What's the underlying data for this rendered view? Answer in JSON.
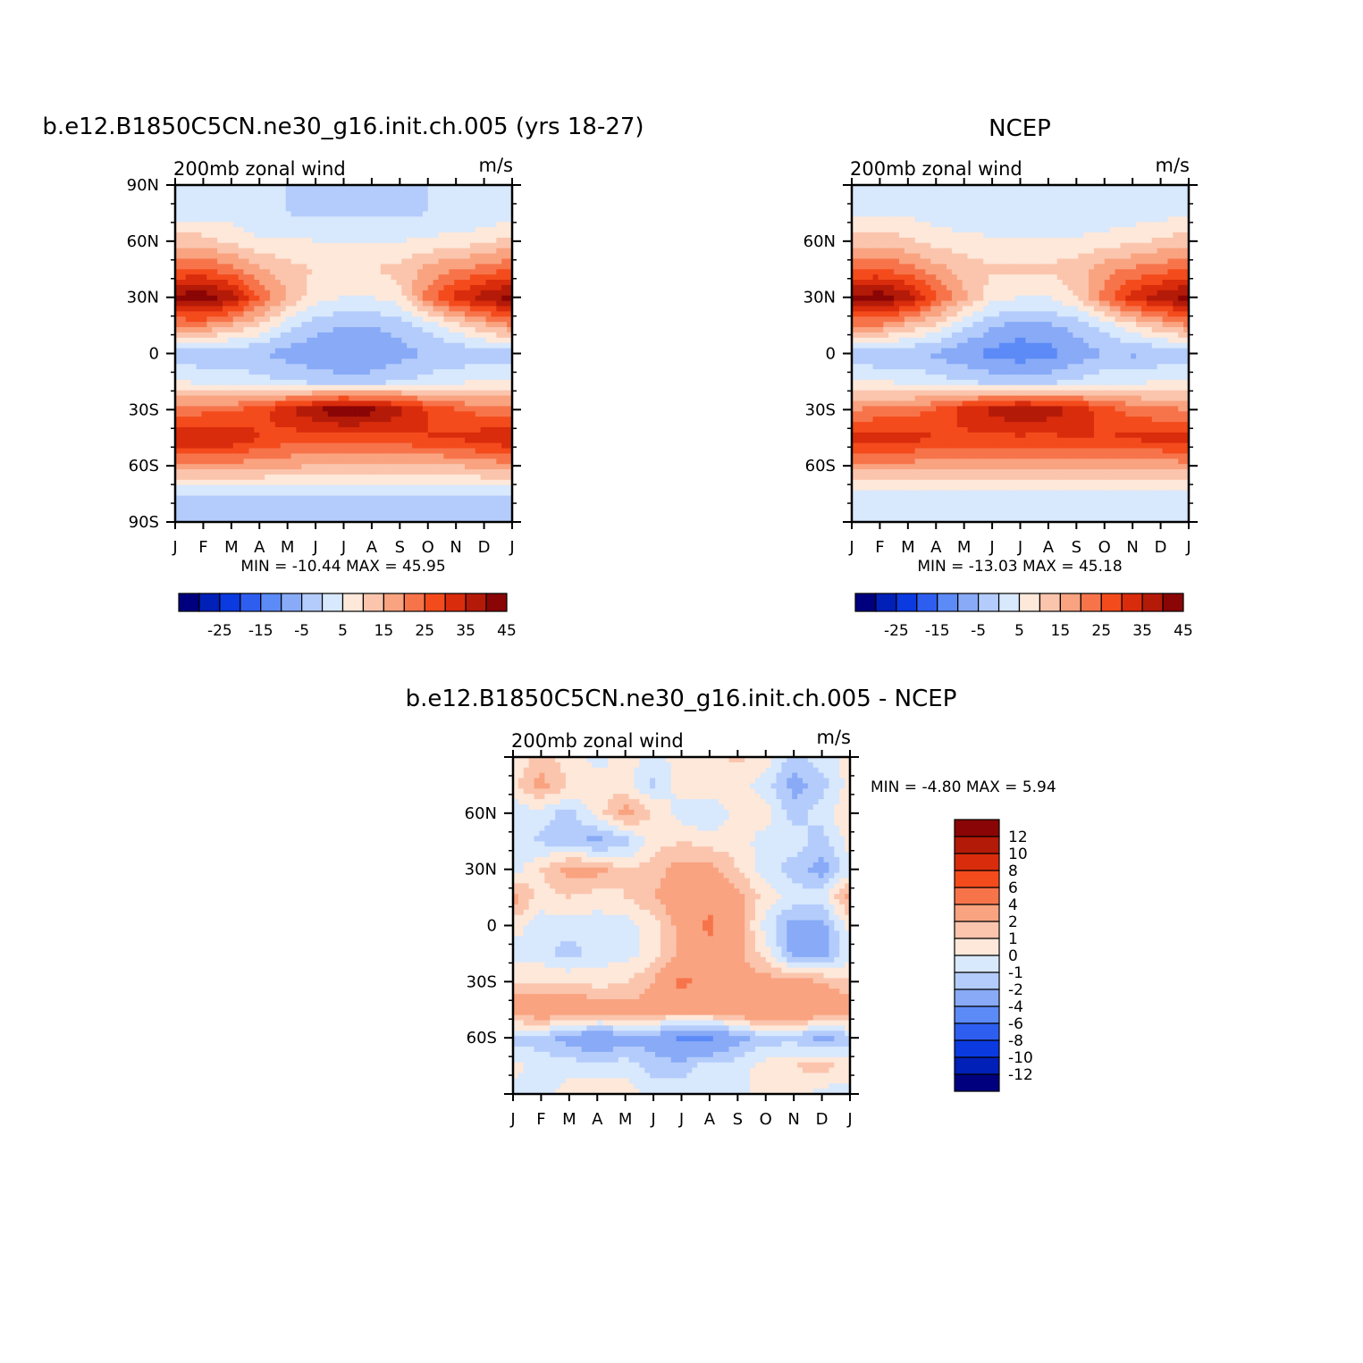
{
  "colors": {
    "main_levels": [
      "#00007f",
      "#0020b8",
      "#0a3ae0",
      "#2e5ef0",
      "#5c8af7",
      "#88aaf7",
      "#b4ccfb",
      "#d8e8fd",
      "#fde8da",
      "#fbc5ad",
      "#f9a380",
      "#f7744b",
      "#f44b1c",
      "#d92c0c",
      "#b41a08",
      "#8a0505"
    ],
    "diff_levels": [
      "#00007f",
      "#0020b8",
      "#0a3ae0",
      "#2e5ef0",
      "#5c8af7",
      "#88aaf7",
      "#b4ccfb",
      "#d8e8fd",
      "#fde8da",
      "#fbc5ad",
      "#f9a380",
      "#f7744b",
      "#f44b1c",
      "#d92c0c",
      "#b41a08",
      "#8a0505"
    ]
  },
  "panels": [
    {
      "id": "model",
      "title": "b.e12.B1850C5CN.ne30_g16.init.ch.005 (yrs 18-27)",
      "left_label": "200mb zonal wind",
      "right_label": "m/s",
      "min_max": "MIN = -10.44 MAX =  45.95"
    },
    {
      "id": "obs",
      "title": "NCEP",
      "left_label": "200mb zonal wind",
      "right_label": "m/s",
      "min_max": "MIN = -13.03 MAX =  45.18"
    },
    {
      "id": "diff",
      "title": "b.e12.B1850C5CN.ne30_g16.init.ch.005 - NCEP",
      "left_label": "200mb zonal wind",
      "right_label": "m/s",
      "min_max": "MIN =   -4.80 MAX =    5.94"
    }
  ],
  "main_colorbar_labels": [
    "-25",
    "-15",
    "-5",
    "5",
    "15",
    "25",
    "35",
    "45"
  ],
  "diff_colorbar_labels": [
    "12",
    "10",
    "8",
    "6",
    "4",
    "2",
    "1",
    "0",
    "-1",
    "-2",
    "-4",
    "-6",
    "-8",
    "-10",
    "-12"
  ],
  "chart_data": [
    {
      "type": "heatmap",
      "title": "b.e12.B1850C5CN.ne30_g16.init.ch.005 (yrs 18-27)",
      "subtitle": "200mb zonal wind",
      "units": "m/s",
      "x": [
        "J",
        "F",
        "M",
        "A",
        "M",
        "J",
        "J",
        "A",
        "S",
        "O",
        "N",
        "D",
        "J"
      ],
      "y_ticks": [
        "90N",
        "60N",
        "30N",
        "0",
        "30S",
        "60S",
        "90S"
      ],
      "ylim": [
        -90,
        90
      ],
      "lat": [
        90,
        75,
        60,
        45,
        30,
        15,
        0,
        -15,
        -30,
        -45,
        -60,
        -75,
        -90
      ],
      "values": [
        [
          0,
          0,
          0,
          0,
          0,
          0,
          0,
          0,
          0,
          0,
          0,
          0,
          0
        ],
        [
          3,
          3,
          3,
          0,
          0,
          -1,
          -1,
          -1,
          -1,
          0,
          0,
          0,
          3
        ],
        [
          12,
          12,
          9,
          6,
          6,
          5,
          5,
          5,
          5,
          6,
          7,
          9,
          12
        ],
        [
          25,
          25,
          22,
          16,
          12,
          10,
          10,
          10,
          12,
          17,
          20,
          22,
          25
        ],
        [
          42,
          44,
          38,
          25,
          15,
          7,
          5,
          5,
          8,
          22,
          32,
          38,
          42
        ],
        [
          20,
          20,
          15,
          10,
          2,
          -3,
          -5,
          -5,
          -3,
          2,
          8,
          14,
          20
        ],
        [
          -3,
          -4,
          -4,
          -5,
          -7,
          -9,
          -10,
          -9,
          -7,
          -5,
          -4,
          -3,
          -3
        ],
        [
          5,
          4,
          3,
          2,
          0,
          -2,
          -3,
          -3,
          0,
          2,
          4,
          5,
          5
        ],
        [
          22,
          23,
          24,
          28,
          34,
          40,
          45,
          42,
          37,
          30,
          25,
          23,
          22
        ],
        [
          36,
          36,
          35,
          30,
          28,
          27,
          27,
          28,
          29,
          30,
          31,
          33,
          36
        ],
        [
          18,
          18,
          18,
          17,
          16,
          15,
          14,
          13,
          13,
          14,
          15,
          17,
          18
        ],
        [
          0,
          0,
          0,
          0,
          0,
          0,
          0,
          0,
          0,
          0,
          0,
          0,
          0
        ],
        [
          -2,
          -2,
          -2,
          -2,
          -2,
          -2,
          -2,
          -2,
          -2,
          -2,
          -2,
          -2,
          -2
        ]
      ]
    },
    {
      "type": "heatmap",
      "title": "NCEP",
      "subtitle": "200mb zonal wind",
      "units": "m/s",
      "x": [
        "J",
        "F",
        "M",
        "A",
        "M",
        "J",
        "J",
        "A",
        "S",
        "O",
        "N",
        "D",
        "J"
      ],
      "y_ticks": [
        "60N",
        "30N",
        "0",
        "30S",
        "60S"
      ],
      "ylim": [
        -90,
        90
      ],
      "lat": [
        90,
        75,
        60,
        45,
        30,
        15,
        0,
        -15,
        -30,
        -45,
        -60,
        -75,
        -90
      ],
      "values": [
        [
          0,
          0,
          0,
          0,
          0,
          0,
          0,
          0,
          0,
          0,
          0,
          0,
          0
        ],
        [
          4,
          4,
          4,
          2,
          1,
          0,
          0,
          0,
          0,
          1,
          2,
          3,
          4
        ],
        [
          13,
          13,
          11,
          8,
          7,
          6,
          6,
          6,
          6,
          7,
          9,
          11,
          13
        ],
        [
          25,
          25,
          22,
          17,
          13,
          11,
          11,
          11,
          13,
          18,
          21,
          23,
          25
        ],
        [
          42,
          43,
          38,
          26,
          16,
          7,
          5,
          5,
          10,
          22,
          33,
          38,
          42
        ],
        [
          20,
          20,
          14,
          9,
          1,
          -4,
          -7,
          -6,
          -3,
          2,
          9,
          14,
          20
        ],
        [
          -4,
          -5,
          -5,
          -6,
          -9,
          -12,
          -13,
          -12,
          -8,
          -5,
          -6,
          -4,
          -4
        ],
        [
          6,
          5,
          4,
          2,
          0,
          -2,
          -3,
          -2,
          1,
          3,
          4,
          5,
          6
        ],
        [
          20,
          21,
          22,
          26,
          32,
          37,
          40,
          38,
          34,
          28,
          23,
          21,
          20
        ],
        [
          33,
          33,
          32,
          30,
          29,
          29,
          29,
          29,
          30,
          30,
          31,
          32,
          33
        ],
        [
          18,
          18,
          18,
          17,
          17,
          16,
          16,
          16,
          16,
          16,
          16,
          17,
          18
        ],
        [
          4,
          4,
          4,
          3,
          3,
          3,
          3,
          3,
          3,
          3,
          3,
          3,
          4
        ],
        [
          0,
          0,
          0,
          0,
          0,
          0,
          0,
          0,
          0,
          0,
          0,
          0,
          0
        ]
      ]
    },
    {
      "type": "heatmap",
      "title": "b.e12.B1850C5CN.ne30_g16.init.ch.005 - NCEP",
      "subtitle": "200mb zonal wind",
      "units": "m/s",
      "x": [
        "J",
        "F",
        "M",
        "A",
        "M",
        "J",
        "J",
        "A",
        "S",
        "O",
        "N",
        "D",
        "J"
      ],
      "y_ticks": [
        "60N",
        "30N",
        "0",
        "30S",
        "60S"
      ],
      "ylim": [
        -90,
        90
      ],
      "lat": [
        90,
        75,
        60,
        45,
        30,
        15,
        0,
        -15,
        -30,
        -45,
        -60,
        -75,
        -90
      ],
      "values": [
        [
          0.5,
          1.2,
          0.5,
          -0.5,
          0.5,
          -0.5,
          0.5,
          0.5,
          1.2,
          0.5,
          -1.5,
          -0.5,
          0.5
        ],
        [
          0.5,
          2.5,
          1,
          0.5,
          0.5,
          -1.2,
          0.5,
          1,
          0.5,
          -0.5,
          -2.5,
          -1.5,
          0.5
        ],
        [
          -0.5,
          -0.5,
          -1.5,
          0.5,
          2.5,
          1,
          -0.5,
          -1,
          0.5,
          0.5,
          -1.5,
          -0.5,
          1
        ],
        [
          -0.5,
          -1.2,
          -1.5,
          -2.5,
          -1.5,
          0.5,
          1,
          0.5,
          0.5,
          -0.5,
          -0.5,
          -1.5,
          0.5
        ],
        [
          -0.5,
          1,
          2.5,
          2.5,
          1,
          1.5,
          2.5,
          2.5,
          1,
          -0.5,
          -1.5,
          -2.5,
          -0.5
        ],
        [
          2.5,
          0.5,
          1,
          0.5,
          1,
          2,
          3,
          3.5,
          2.5,
          0.5,
          -0.5,
          -0.5,
          2.5
        ],
        [
          0.5,
          -0.5,
          -0.5,
          -0.5,
          -0.5,
          0.5,
          2.5,
          4.5,
          2.5,
          -0.5,
          -2.5,
          -2.5,
          0.5
        ],
        [
          -0.5,
          -0.5,
          -1.5,
          -0.5,
          -0.5,
          0.5,
          2.5,
          3,
          2.5,
          0.5,
          -2.5,
          -2.5,
          -0.5
        ],
        [
          1,
          1,
          1,
          0.5,
          1,
          2,
          4.5,
          3,
          2.5,
          2.5,
          2.5,
          2,
          1
        ],
        [
          3,
          3.5,
          3.5,
          3,
          2.5,
          2.5,
          3,
          3,
          3.5,
          4,
          4,
          3.5,
          3
        ],
        [
          -1.5,
          -1.5,
          -2.5,
          -3.5,
          -2.5,
          -2.5,
          -4.5,
          -4.5,
          -2.5,
          -1.5,
          -1.5,
          -2.5,
          -1.5
        ],
        [
          0.5,
          -0.5,
          -0.5,
          -0.5,
          -0.5,
          -1.5,
          -1.5,
          -0.5,
          -0.5,
          0.5,
          1,
          1.5,
          0.5
        ],
        [
          -0.5,
          -0.5,
          0.5,
          0.5,
          0.5,
          -0.5,
          -0.5,
          -0.5,
          -0.5,
          0.5,
          0.5,
          -0.5,
          -0.5
        ]
      ]
    }
  ]
}
